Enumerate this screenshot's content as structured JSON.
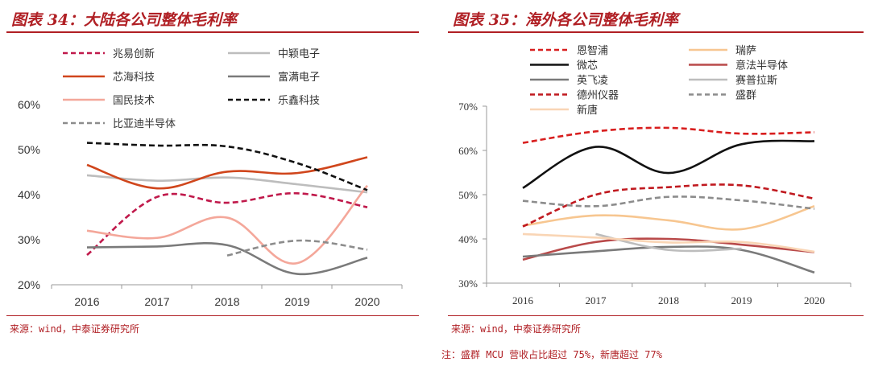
{
  "left": {
    "title": "图表 34：大陆各公司整体毛利率",
    "source": "来源：wind，中泰证券研究所"
  },
  "right": {
    "title": "图表 35：海外各公司整体毛利率",
    "source": "来源：wind，中泰证券研究所",
    "note": "注：盛群 MCU 营收占比超过 75%，新唐超过 77%"
  },
  "chart_data": [
    {
      "type": "line",
      "title": "图表 34：大陆各公司整体毛利率",
      "x": [
        "2016",
        "2017",
        "2018",
        "2019",
        "2020"
      ],
      "ylim": [
        0.2,
        0.6
      ],
      "yticks": [
        "20%",
        "30%",
        "40%",
        "50%",
        "60%"
      ],
      "legend_position": "top",
      "series": [
        {
          "name": "兆易创新",
          "values": [
            0.266,
            0.395,
            0.382,
            0.403,
            0.372
          ],
          "color": "#c0194b",
          "dash": "dashed"
        },
        {
          "name": "中颖电子",
          "values": [
            0.443,
            0.431,
            0.438,
            0.423,
            0.405
          ],
          "color": "#bdbdbd",
          "dash": "solid"
        },
        {
          "name": "芯海科技",
          "values": [
            0.466,
            0.414,
            0.451,
            0.448,
            0.483
          ],
          "color": "#d0461c",
          "dash": "solid"
        },
        {
          "name": "富满电子",
          "values": [
            0.283,
            0.285,
            0.288,
            0.224,
            0.26
          ],
          "color": "#7a7a7a",
          "dash": "solid"
        },
        {
          "name": "国民技术",
          "values": [
            0.32,
            0.304,
            0.349,
            0.248,
            0.42
          ],
          "color": "#f4a79a",
          "dash": "solid"
        },
        {
          "name": "乐鑫科技",
          "values": [
            0.515,
            0.509,
            0.507,
            0.47,
            0.41
          ],
          "color": "#111111",
          "dash": "dashed"
        },
        {
          "name": "比亚迪半导体",
          "values": [
            null,
            null,
            0.265,
            0.298,
            0.278
          ],
          "color": "#8c8c8c",
          "dash": "dashed"
        }
      ]
    },
    {
      "type": "line",
      "title": "图表 35：海外各公司整体毛利率",
      "x": [
        "2016",
        "2017",
        "2018",
        "2019",
        "2020"
      ],
      "ylim": [
        0.3,
        0.7
      ],
      "yticks": [
        "30%",
        "40%",
        "50%",
        "60%",
        "70%"
      ],
      "legend_position": "top",
      "series": [
        {
          "name": "恩智浦",
          "values": [
            0.617,
            0.643,
            0.651,
            0.638,
            0.641
          ],
          "color": "#d81e1e",
          "dash": "dashed"
        },
        {
          "name": "瑞萨",
          "values": [
            0.43,
            0.453,
            0.442,
            0.422,
            0.474
          ],
          "color": "#f7c690",
          "dash": "solid"
        },
        {
          "name": "微芯",
          "values": [
            0.515,
            0.608,
            0.549,
            0.614,
            0.621
          ],
          "color": "#111111",
          "dash": "solid"
        },
        {
          "name": "意法半导体",
          "values": [
            0.353,
            0.393,
            0.4,
            0.387,
            0.37
          ],
          "color": "#b94a4a",
          "dash": "solid"
        },
        {
          "name": "英飞凌",
          "values": [
            0.36,
            0.372,
            0.382,
            0.375,
            0.324
          ],
          "color": "#7a7a7a",
          "dash": "solid"
        },
        {
          "name": "赛普拉斯",
          "values": [
            null,
            0.411,
            0.375,
            0.378,
            null
          ],
          "color": "#bdbdbd",
          "dash": "solid"
        },
        {
          "name": "德州仪器",
          "values": [
            0.428,
            0.5,
            0.517,
            0.521,
            0.491
          ],
          "color": "#c0191f",
          "dash": "dashed"
        },
        {
          "name": "盛群",
          "values": [
            0.486,
            0.474,
            0.495,
            0.487,
            0.468
          ],
          "color": "#8c8c8c",
          "dash": "dashed"
        },
        {
          "name": "新唐",
          "values": [
            0.411,
            0.403,
            0.392,
            0.393,
            0.371
          ],
          "color": "#f9d5b5",
          "dash": "solid"
        }
      ]
    }
  ]
}
